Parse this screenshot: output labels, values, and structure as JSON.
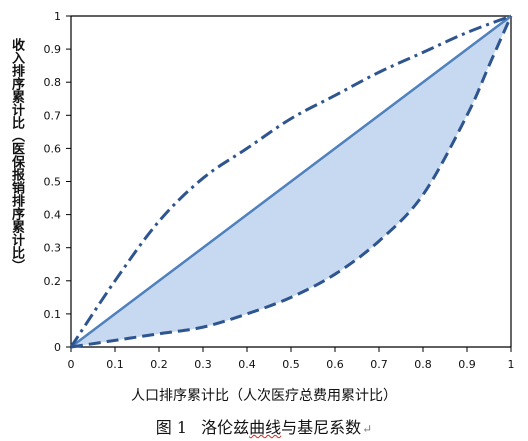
{
  "chart_data": {
    "type": "line",
    "title": "",
    "xlabel": "人口排序累计比（人次医疗总费用累计比）",
    "ylabel": "收入排序累计比（医保报销排序累计比）",
    "xlim": [
      0,
      1
    ],
    "ylim": [
      0,
      1
    ],
    "x_ticks": [
      "0",
      "0.1",
      "0.2",
      "0.3",
      "0.4",
      "0.5",
      "0.6",
      "0.7",
      "0.8",
      "0.9",
      "1"
    ],
    "y_ticks": [
      "0",
      "0.1",
      "0.2",
      "0.3",
      "0.4",
      "0.5",
      "0.6",
      "0.7",
      "0.8",
      "0.9",
      "1"
    ],
    "grid": false,
    "legend": "none",
    "colors": {
      "line": "#4f81bd",
      "dashed": "#2e5590",
      "fill": "#c6d9f1",
      "axis": "#000000"
    },
    "series": [
      {
        "style": "solid",
        "x": [
          0,
          1
        ],
        "y": [
          0,
          1
        ]
      },
      {
        "style": "dashed",
        "x": [
          0,
          0.1,
          0.2,
          0.3,
          0.4,
          0.5,
          0.6,
          0.7,
          0.8,
          0.9,
          0.95,
          1
        ],
        "y": [
          0,
          0.02,
          0.04,
          0.06,
          0.1,
          0.15,
          0.22,
          0.32,
          0.46,
          0.7,
          0.85,
          1
        ]
      },
      {
        "style": "dash-dot",
        "x": [
          0,
          0.1,
          0.2,
          0.3,
          0.4,
          0.5,
          0.6,
          0.7,
          0.8,
          0.9,
          1
        ],
        "y": [
          0,
          0.2,
          0.38,
          0.51,
          0.6,
          0.69,
          0.76,
          0.83,
          0.89,
          0.95,
          1
        ]
      }
    ],
    "shaded_between": [
      "solid",
      "dashed"
    ]
  },
  "caption": {
    "label": "图 1",
    "prefix": "洛伦兹",
    "squiggly": "曲线",
    "suffix": "与基尼系数",
    "mark": "↵"
  }
}
